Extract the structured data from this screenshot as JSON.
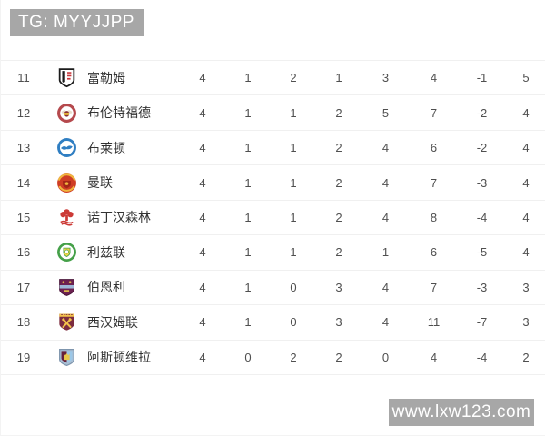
{
  "watermark_top": {
    "text": "TG: MYYJJPP"
  },
  "watermark_bottom": {
    "text": "www.lxw123.com"
  },
  "colors": {
    "banner_bg": "#a7a7a7",
    "banner_text": "#ffffff",
    "row_divider": "#f0f0f0",
    "stat_text": "#4f4f4f",
    "team_text": "#333333"
  },
  "table": {
    "rows": [
      {
        "pos": "11",
        "badge": "fulham-badge-icon",
        "name": "富勒姆",
        "played": "4",
        "won": "1",
        "drawn": "2",
        "lost": "1",
        "goals_for": "3",
        "goals_against": "4",
        "goal_diff": "-1",
        "points": "5"
      },
      {
        "pos": "12",
        "badge": "brentford-badge-icon",
        "name": "布伦特福德",
        "played": "4",
        "won": "1",
        "drawn": "1",
        "lost": "2",
        "goals_for": "5",
        "goals_against": "7",
        "goal_diff": "-2",
        "points": "4"
      },
      {
        "pos": "13",
        "badge": "brighton-badge-icon",
        "name": "布莱顿",
        "played": "4",
        "won": "1",
        "drawn": "1",
        "lost": "2",
        "goals_for": "4",
        "goals_against": "6",
        "goal_diff": "-2",
        "points": "4"
      },
      {
        "pos": "14",
        "badge": "man-united-badge-icon",
        "name": "曼联",
        "played": "4",
        "won": "1",
        "drawn": "1",
        "lost": "2",
        "goals_for": "4",
        "goals_against": "7",
        "goal_diff": "-3",
        "points": "4"
      },
      {
        "pos": "15",
        "badge": "nottingham-forest-badge-icon",
        "name": "诺丁汉森林",
        "played": "4",
        "won": "1",
        "drawn": "1",
        "lost": "2",
        "goals_for": "4",
        "goals_against": "8",
        "goal_diff": "-4",
        "points": "4"
      },
      {
        "pos": "16",
        "badge": "leeds-badge-icon",
        "name": "利兹联",
        "played": "4",
        "won": "1",
        "drawn": "1",
        "lost": "2",
        "goals_for": "1",
        "goals_against": "6",
        "goal_diff": "-5",
        "points": "4"
      },
      {
        "pos": "17",
        "badge": "burnley-badge-icon",
        "name": "伯恩利",
        "played": "4",
        "won": "1",
        "drawn": "0",
        "lost": "3",
        "goals_for": "4",
        "goals_against": "7",
        "goal_diff": "-3",
        "points": "3"
      },
      {
        "pos": "18",
        "badge": "west-ham-badge-icon",
        "name": "西汉姆联",
        "played": "4",
        "won": "1",
        "drawn": "0",
        "lost": "3",
        "goals_for": "4",
        "goals_against": "11",
        "goal_diff": "-7",
        "points": "3"
      },
      {
        "pos": "19",
        "badge": "aston-villa-badge-icon",
        "name": "阿斯顿维拉",
        "played": "4",
        "won": "0",
        "drawn": "2",
        "lost": "2",
        "goals_for": "0",
        "goals_against": "4",
        "goal_diff": "-4",
        "points": "2"
      }
    ]
  }
}
